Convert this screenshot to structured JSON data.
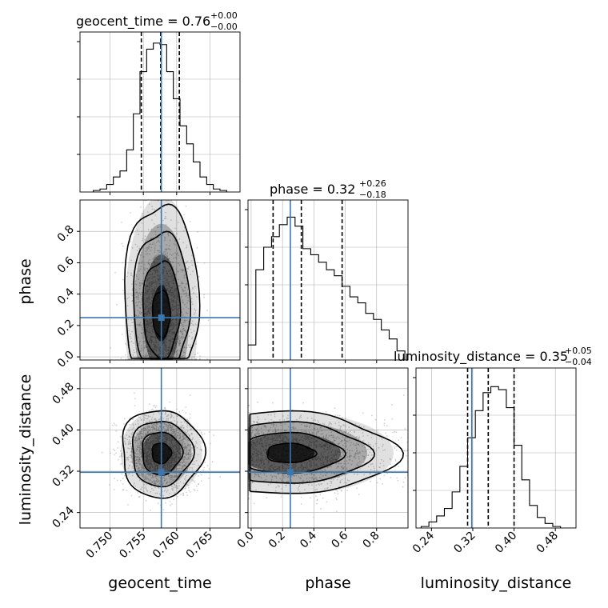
{
  "colors": {
    "truth": "#3b77af",
    "hist": "#000000",
    "grid": "#b0b0b0",
    "points": "#9a9a9a"
  },
  "chart_data": {
    "type": "corner",
    "parameters": [
      "geocent_time",
      "phase",
      "luminosity_distance"
    ],
    "truths": {
      "geocent_time": 0.7577,
      "phase": 0.25,
      "luminosity_distance": 0.318
    },
    "titles": [
      {
        "param": "geocent_time",
        "label": "geocent_time = 0.76",
        "plus": "+0.00",
        "minus": "−0.00"
      },
      {
        "param": "phase",
        "label": "phase = 0.32",
        "plus": "+0.26",
        "minus": "−0.18"
      },
      {
        "param": "luminosity_distance",
        "label": "luminosity_distance = 0.35",
        "plus": "+0.05",
        "minus": "−0.04"
      }
    ],
    "axes": {
      "geocent_time": {
        "range": [
          0.7455,
          0.7695
        ],
        "ticks": [
          "0.750",
          "0.755",
          "0.760",
          "0.765"
        ],
        "tick_values": [
          0.75,
          0.755,
          0.76,
          0.765
        ]
      },
      "phase": {
        "range": [
          -0.02,
          1.0
        ],
        "ticks": [
          "0.0",
          "0.2",
          "0.4",
          "0.6",
          "0.8"
        ],
        "tick_values": [
          0.0,
          0.2,
          0.4,
          0.6,
          0.8
        ]
      },
      "luminosity_distance": {
        "range": [
          0.21,
          0.52
        ],
        "ticks": [
          "0.24",
          "0.32",
          "0.40",
          "0.48"
        ],
        "tick_values": [
          0.24,
          0.32,
          0.4,
          0.48
        ]
      }
    },
    "histograms": {
      "geocent_time": {
        "edges": [
          0.7475,
          0.7485,
          0.7495,
          0.7505,
          0.7515,
          0.7525,
          0.7535,
          0.7545,
          0.7555,
          0.7565,
          0.7575,
          0.7585,
          0.7595,
          0.7605,
          0.7615,
          0.7625,
          0.7635,
          0.7645,
          0.7655,
          0.7665,
          0.7675
        ],
        "counts": [
          0.01,
          0.02,
          0.05,
          0.1,
          0.14,
          0.28,
          0.52,
          0.8,
          0.95,
          0.99,
          0.98,
          0.8,
          0.62,
          0.44,
          0.32,
          0.2,
          0.1,
          0.05,
          0.02,
          0.01
        ],
        "quantiles": [
          0.7547,
          0.7576,
          0.7604
        ]
      },
      "phase": {
        "edges": [
          -0.02,
          0.03,
          0.08,
          0.13,
          0.18,
          0.23,
          0.28,
          0.33,
          0.38,
          0.43,
          0.48,
          0.53,
          0.58,
          0.63,
          0.68,
          0.73,
          0.78,
          0.83,
          0.88,
          0.93,
          0.98
        ],
        "counts": [
          0.1,
          0.6,
          0.75,
          0.82,
          0.9,
          0.95,
          0.89,
          0.74,
          0.7,
          0.65,
          0.6,
          0.56,
          0.49,
          0.42,
          0.38,
          0.31,
          0.27,
          0.2,
          0.14,
          0.06
        ],
        "quantiles": [
          0.14,
          0.32,
          0.58
        ]
      },
      "luminosity_distance": {
        "edges": [
          0.22,
          0.235,
          0.25,
          0.265,
          0.28,
          0.295,
          0.31,
          0.325,
          0.34,
          0.355,
          0.37,
          0.385,
          0.4,
          0.415,
          0.43,
          0.445,
          0.46,
          0.475,
          0.49,
          0.505,
          0.52
        ],
        "counts": [
          0.01,
          0.04,
          0.08,
          0.13,
          0.24,
          0.41,
          0.6,
          0.78,
          0.9,
          0.94,
          0.92,
          0.8,
          0.55,
          0.32,
          0.15,
          0.07,
          0.03,
          0.01,
          0.0,
          0.0
        ],
        "quantiles": [
          0.31,
          0.35,
          0.4
        ]
      }
    },
    "pairs": [
      {
        "x": "geocent_time",
        "y": "phase",
        "center": [
          0.7577,
          0.25
        ],
        "sd": [
          0.0022,
          0.2
        ],
        "shift_y": 0.07,
        "levels": [
          0.6,
          1.25,
          1.9,
          2.5
        ],
        "clip_y": [
          -0.02,
          1.0
        ]
      },
      {
        "x": "geocent_time",
        "y": "luminosity_distance",
        "center": [
          0.7577,
          0.355
        ],
        "sd": [
          0.0026,
          0.036
        ],
        "shift_y": 0.0,
        "levels": [
          0.55,
          1.15,
          1.75,
          2.35
        ],
        "clip_y": [
          0.21,
          0.52
        ]
      },
      {
        "x": "phase",
        "y": "luminosity_distance",
        "center": [
          0.25,
          0.355
        ],
        "sd": [
          0.28,
          0.034
        ],
        "shift_y": 0.0,
        "levels": [
          0.55,
          1.15,
          1.75,
          2.35
        ],
        "clip_x": [
          -0.02,
          1.0
        ]
      }
    ]
  }
}
